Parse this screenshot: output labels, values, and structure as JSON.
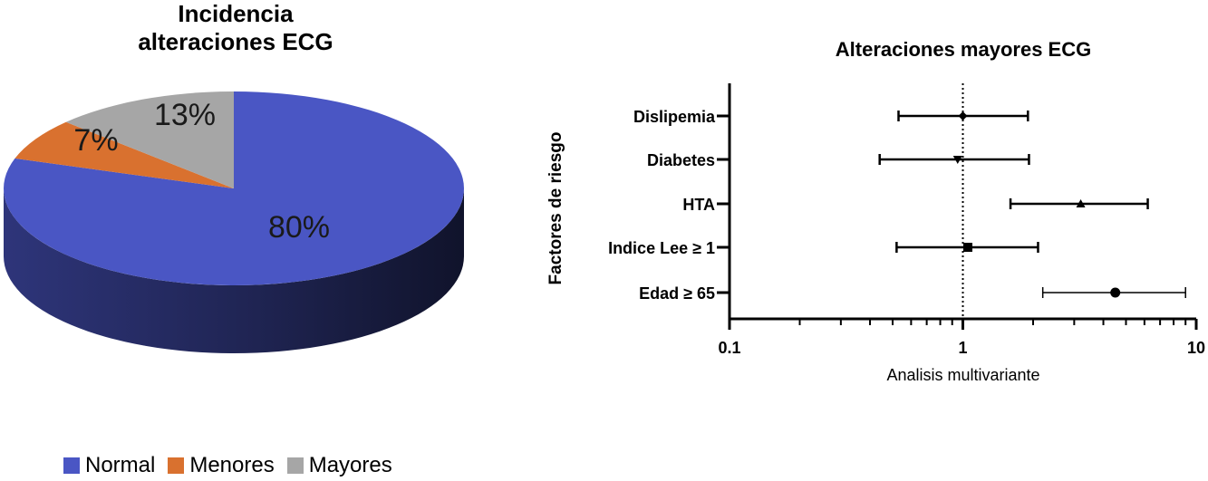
{
  "chart_data": [
    {
      "type": "pie",
      "style": "3d",
      "title_line1": "Incidencia",
      "title_line2": "alteraciones ECG",
      "slices": [
        {
          "name": "Normal",
          "value": 80,
          "label": "80%",
          "color": "#4a56c4"
        },
        {
          "name": "Menores",
          "value": 7,
          "label": "7%",
          "color": "#d9712f"
        },
        {
          "name": "Mayores",
          "value": 13,
          "label": "13%",
          "color": "#a6a6a6"
        }
      ],
      "legend_position": "bottom"
    },
    {
      "type": "scatter",
      "style": "forest-plot",
      "title": "Alteraciones mayores ECG",
      "xlabel": "Analisis multivariante",
      "ylabel": "Factores de riesgo",
      "x_scale": "log",
      "xlim": [
        0.1,
        10
      ],
      "x_tick_labels": [
        "0.1",
        "1",
        "10"
      ],
      "reference_line": 1,
      "rows": [
        {
          "label": "Dislipemia",
          "estimate": 1.0,
          "lower": 0.53,
          "upper": 1.9,
          "marker": "diamond"
        },
        {
          "label": "Diabetes",
          "estimate": 0.95,
          "lower": 0.44,
          "upper": 1.92,
          "marker": "triangle-down"
        },
        {
          "label": "HTA",
          "estimate": 3.2,
          "lower": 1.6,
          "upper": 6.2,
          "marker": "triangle-up"
        },
        {
          "label": "Indice Lee ≥ 1",
          "estimate": 1.05,
          "lower": 0.52,
          "upper": 2.1,
          "marker": "square"
        },
        {
          "label": "Edad ≥ 65",
          "estimate": 4.5,
          "lower": 2.2,
          "upper": 9.0,
          "marker": "circle"
        }
      ]
    }
  ]
}
